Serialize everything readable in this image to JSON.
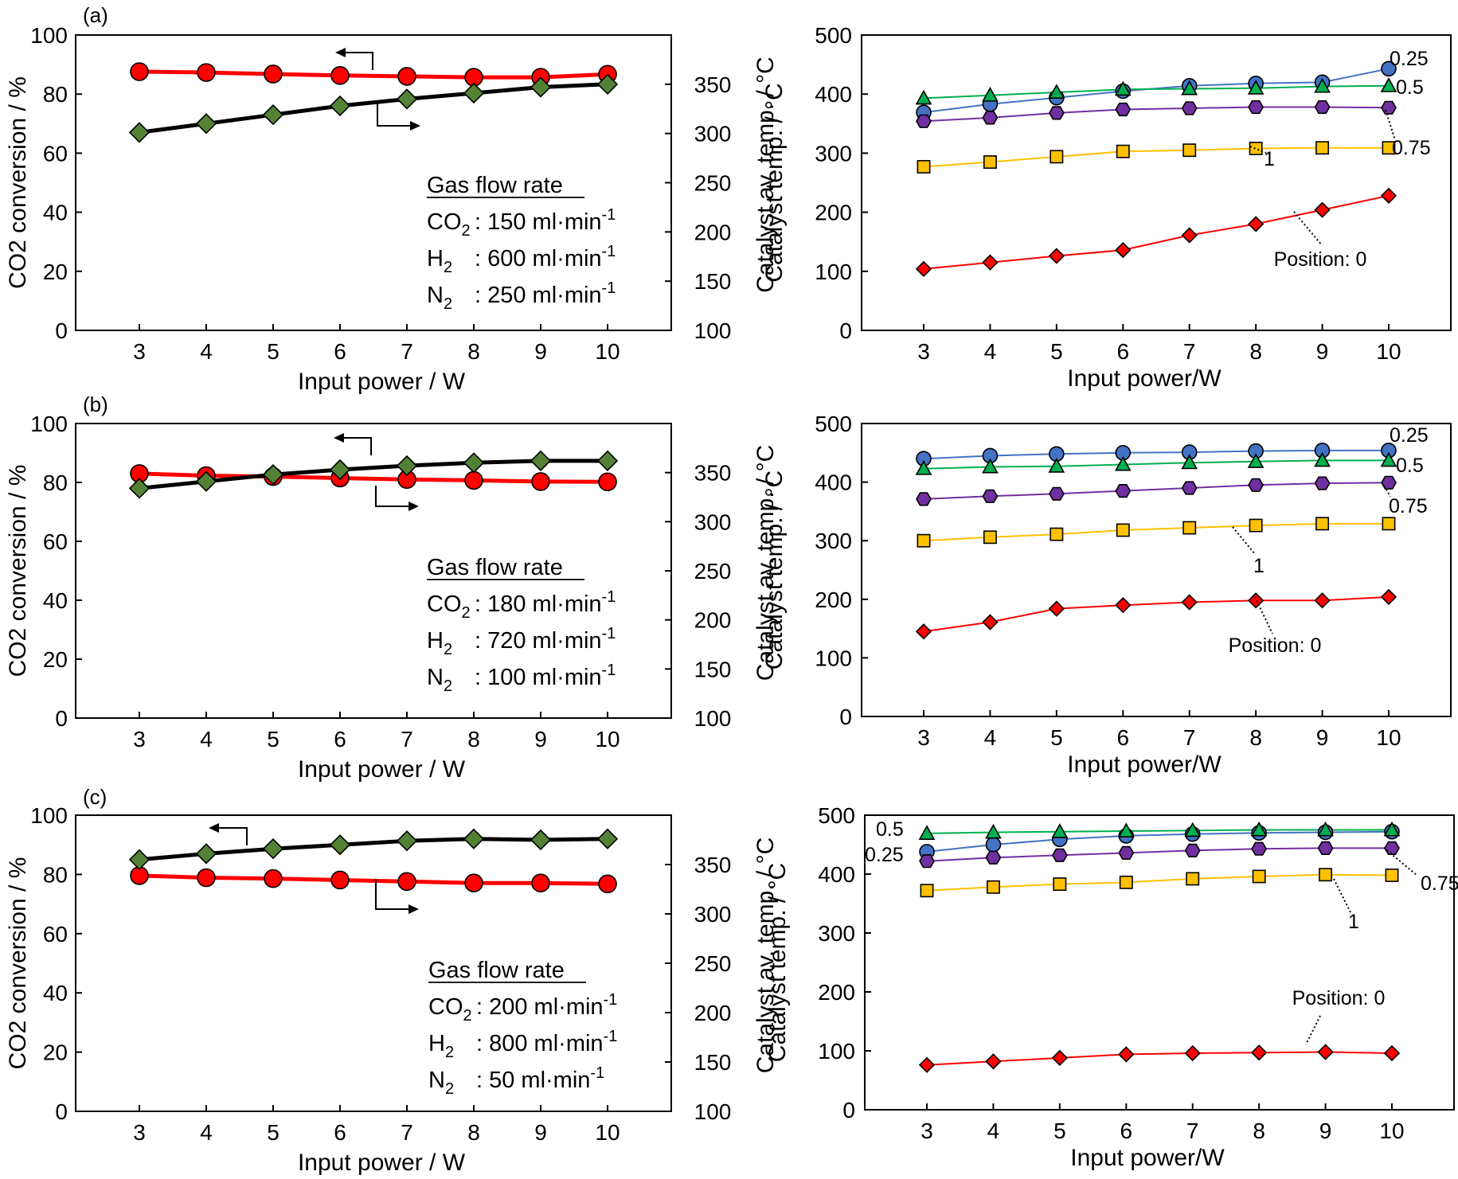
{
  "chart_data": [
    {
      "panel": "(a)",
      "type": "line",
      "x": [
        3,
        4,
        5,
        6,
        7,
        8,
        9,
        10
      ],
      "xlabel": "Input power / W",
      "ylabel": "CO2 conversion / %",
      "ylim": [
        0,
        100
      ],
      "yticks": [
        0,
        20,
        40,
        60,
        80,
        100
      ],
      "y2label": "Catalyst av. temp. / °C",
      "y2lim": [
        100,
        400
      ],
      "y2ticks": [
        100,
        150,
        200,
        250,
        300,
        350
      ],
      "series": [
        {
          "axis": "left",
          "color": "#ff0000",
          "marker": "circle",
          "values": [
            87.6,
            87.3,
            86.8,
            86.3,
            86.0,
            85.7,
            85.7,
            86.7
          ]
        },
        {
          "axis": "right",
          "color": "#000000",
          "marker": "diamond",
          "values": [
            301,
            310,
            319,
            328,
            335,
            341,
            347,
            350
          ]
        }
      ],
      "legend": {
        "title": "Gas flow rate",
        "lines": [
          {
            "name": "CO",
            "sub": "2",
            "value": ": 150 ml·min",
            "sup": "-1"
          },
          {
            "name": "H",
            "sub": "2",
            "value": ": 600 ml·min",
            "sup": "-1"
          },
          {
            "name": "N",
            "sub": "2",
            "value": ": 250 ml·min",
            "sup": "-1"
          }
        ]
      }
    },
    {
      "panel": "(b)",
      "type": "line",
      "x": [
        3,
        4,
        5,
        6,
        7,
        8,
        9,
        10
      ],
      "xlabel": "Input power / W",
      "ylabel": "CO2 conversion / %",
      "ylim": [
        0,
        100
      ],
      "yticks": [
        0,
        20,
        40,
        60,
        80,
        100
      ],
      "y2label": "Catalyst av. temp. / °C",
      "y2lim": [
        100,
        400
      ],
      "y2ticks": [
        100,
        150,
        200,
        250,
        300,
        350
      ],
      "series": [
        {
          "axis": "left",
          "color": "#ff0000",
          "marker": "circle",
          "values": [
            83.0,
            82.3,
            82.0,
            81.5,
            81.0,
            80.7,
            80.3,
            80.2
          ]
        },
        {
          "axis": "right",
          "color": "#000000",
          "marker": "diamond",
          "values": [
            334,
            341,
            348,
            353,
            357,
            360,
            362,
            362
          ]
        }
      ],
      "legend": {
        "title": "Gas flow rate",
        "lines": [
          {
            "name": "CO",
            "sub": "2",
            "value": ": 180 ml·min",
            "sup": "-1"
          },
          {
            "name": "H",
            "sub": "2",
            "value": ": 720 ml·min",
            "sup": "-1"
          },
          {
            "name": "N",
            "sub": "2",
            "value": ": 100 ml·min",
            "sup": "-1"
          }
        ]
      }
    },
    {
      "panel": "(c)",
      "type": "line",
      "x": [
        3,
        4,
        5,
        6,
        7,
        8,
        9,
        10
      ],
      "xlabel": "Input power / W",
      "ylabel": "CO2 conversion / %",
      "ylim": [
        0,
        100
      ],
      "yticks": [
        0,
        20,
        40,
        60,
        80,
        100
      ],
      "y2label": "Catalyst av. temp. / °C",
      "y2lim": [
        100,
        400
      ],
      "y2ticks": [
        100,
        150,
        200,
        250,
        300,
        350
      ],
      "series": [
        {
          "axis": "left",
          "color": "#ff0000",
          "marker": "circle",
          "values": [
            79.6,
            78.9,
            78.6,
            78.1,
            77.6,
            77.1,
            77.1,
            76.8
          ]
        },
        {
          "axis": "right",
          "color": "#000000",
          "marker": "diamond",
          "values": [
            355,
            361,
            366,
            370,
            374,
            376,
            375,
            376
          ]
        }
      ],
      "legend": {
        "title": "Gas flow rate",
        "lines": [
          {
            "name": "CO",
            "sub": "2",
            "value": ": 200 ml·min",
            "sup": "-1"
          },
          {
            "name": "H",
            "sub": "2",
            "value": ": 800 ml·min",
            "sup": "-1"
          },
          {
            "name": "N",
            "sub": "2",
            "value": ":   50 ml·min",
            "sup": "-1"
          }
        ]
      }
    },
    {
      "panel": "(a) right",
      "type": "line",
      "x": [
        3,
        4,
        5,
        6,
        7,
        8,
        9,
        10
      ],
      "xlabel": "Input power/W",
      "ylabel": "Catalyst temp. / °C",
      "ylim": [
        0,
        500
      ],
      "yticks": [
        0,
        100,
        200,
        300,
        400,
        500
      ],
      "series": [
        {
          "label": "0.25",
          "color": "#4472c4",
          "fill": "#4472c4",
          "marker": "circle",
          "values": [
            369,
            383,
            394,
            405,
            414,
            418,
            420,
            443
          ]
        },
        {
          "label": "0.5",
          "color": "#00b050",
          "fill": "#00b050",
          "marker": "triangle",
          "values": [
            393,
            398,
            403,
            408,
            409,
            410,
            413,
            414
          ]
        },
        {
          "label": "0.75",
          "color": "#7030a0",
          "fill": "#7030a0",
          "marker": "hexagon",
          "values": [
            354,
            360,
            368,
            374,
            376,
            378,
            378,
            377
          ]
        },
        {
          "label": "1",
          "color": "#ffc000",
          "fill": "#ffc000",
          "marker": "square",
          "values": [
            277,
            285,
            294,
            303,
            305,
            308,
            309,
            309
          ]
        },
        {
          "label": "Position: 0",
          "color": "#ff0000",
          "fill": "#ff0000",
          "marker": "diamond",
          "values": [
            104,
            115,
            126,
            136,
            161,
            180,
            204,
            228
          ]
        }
      ]
    },
    {
      "panel": "(b) right",
      "type": "line",
      "x": [
        3,
        4,
        5,
        6,
        7,
        8,
        9,
        10
      ],
      "xlabel": "Input power/W",
      "ylabel": "Catalyst temp. / °C",
      "ylim": [
        0,
        500
      ],
      "yticks": [
        0,
        100,
        200,
        300,
        400,
        500
      ],
      "series": [
        {
          "label": "0.25",
          "color": "#4472c4",
          "fill": "#4472c4",
          "marker": "circle",
          "values": [
            440,
            445,
            448,
            450,
            451,
            453,
            454,
            454
          ]
        },
        {
          "label": "0.5",
          "color": "#00b050",
          "fill": "#00b050",
          "marker": "triangle",
          "values": [
            423,
            426,
            427,
            430,
            433,
            435,
            437,
            437
          ]
        },
        {
          "label": "0.75",
          "color": "#7030a0",
          "fill": "#7030a0",
          "marker": "hexagon",
          "values": [
            371,
            376,
            380,
            385,
            390,
            395,
            398,
            399
          ]
        },
        {
          "label": "1",
          "color": "#ffc000",
          "fill": "#ffc000",
          "marker": "square",
          "values": [
            300,
            306,
            311,
            318,
            322,
            326,
            329,
            329
          ]
        },
        {
          "label": "Position: 0",
          "color": "#ff0000",
          "fill": "#ff0000",
          "marker": "diamond",
          "values": [
            145,
            161,
            184,
            190,
            195,
            198,
            198,
            204
          ]
        }
      ]
    },
    {
      "panel": "(c) right",
      "type": "line",
      "x": [
        3,
        4,
        5,
        6,
        7,
        8,
        9,
        10
      ],
      "xlabel": "Input power/W",
      "ylabel": "Catalyst temp. / °C",
      "ylim": [
        0,
        500
      ],
      "yticks": [
        0,
        100,
        200,
        300,
        400,
        500
      ],
      "series": [
        {
          "label": "0.25",
          "color": "#4472c4",
          "fill": "#4472c4",
          "marker": "circle",
          "values": [
            438,
            450,
            459,
            465,
            468,
            470,
            471,
            472
          ]
        },
        {
          "label": "0.5",
          "color": "#00b050",
          "fill": "#00b050",
          "marker": "triangle",
          "values": [
            469,
            471,
            472,
            473,
            474,
            475,
            475,
            475
          ]
        },
        {
          "label": "0.75",
          "color": "#7030a0",
          "fill": "#7030a0",
          "marker": "hexagon",
          "values": [
            422,
            428,
            432,
            436,
            440,
            443,
            444,
            444
          ]
        },
        {
          "label": "1",
          "color": "#ffc000",
          "fill": "#ffc000",
          "marker": "square",
          "values": [
            372,
            378,
            383,
            386,
            392,
            396,
            399,
            398
          ]
        },
        {
          "label": "Position: 0",
          "color": "#ff0000",
          "fill": "#ff0000",
          "marker": "diamond",
          "values": [
            76,
            82,
            88,
            94,
            96,
            97,
            98,
            96
          ]
        }
      ]
    }
  ]
}
